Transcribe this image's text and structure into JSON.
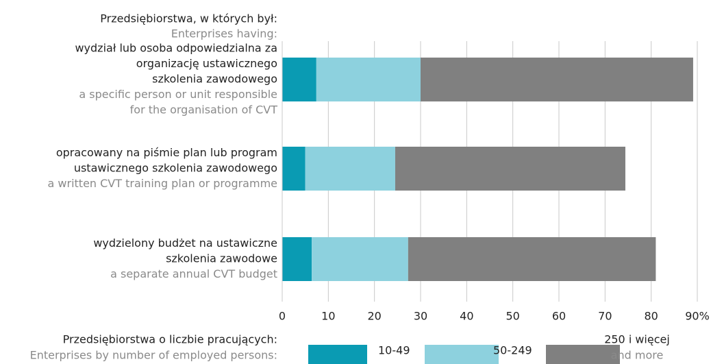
{
  "chart_data": {
    "type": "stacked_bar_horizontal",
    "header": "Przedsiębiorstwa, w których był:",
    "header_en": "Enterprises having:",
    "categories": [
      {
        "label": [
          "wydział lub osoba odpowiedzialna za",
          "organizację ustawicznego",
          "szkolenia zawodowego"
        ],
        "label_en": [
          "a specific person or unit responsible",
          "for the organisation of CVT"
        ]
      },
      {
        "label": [
          "opracowany na piśmie plan lub program",
          "ustawicznego szkolenia zawodowego"
        ],
        "label_en": [
          "a written CVT training plan or programme"
        ]
      },
      {
        "label": [
          "wydzielony budżet na ustawiczne",
          "szkolenia zawodowe"
        ],
        "label_en": [
          "a separate annual CVT budget"
        ]
      }
    ],
    "series": [
      {
        "name": [
          "10-49"
        ],
        "color": "#0a9bb3",
        "values": [
          7.4,
          5.0,
          6.4
        ]
      },
      {
        "name": [
          "50-249"
        ],
        "color": "#8dd1de",
        "values": [
          22.6,
          19.5,
          20.9
        ]
      },
      {
        "name": [
          "250 i więcej",
          "and more"
        ],
        "color": "#808080",
        "values": [
          59.1,
          49.9,
          53.7
        ]
      }
    ],
    "legend_title": "Przedsiębiorstwa o liczbie pracujących:",
    "legend_title_en": "Enterprises by number of employed persons:",
    "xlim": [
      0,
      90
    ],
    "xticks": [
      0,
      10,
      20,
      30,
      40,
      50,
      60,
      70,
      80,
      {
        "value": 90,
        "label": "90%"
      }
    ],
    "grid": true
  }
}
